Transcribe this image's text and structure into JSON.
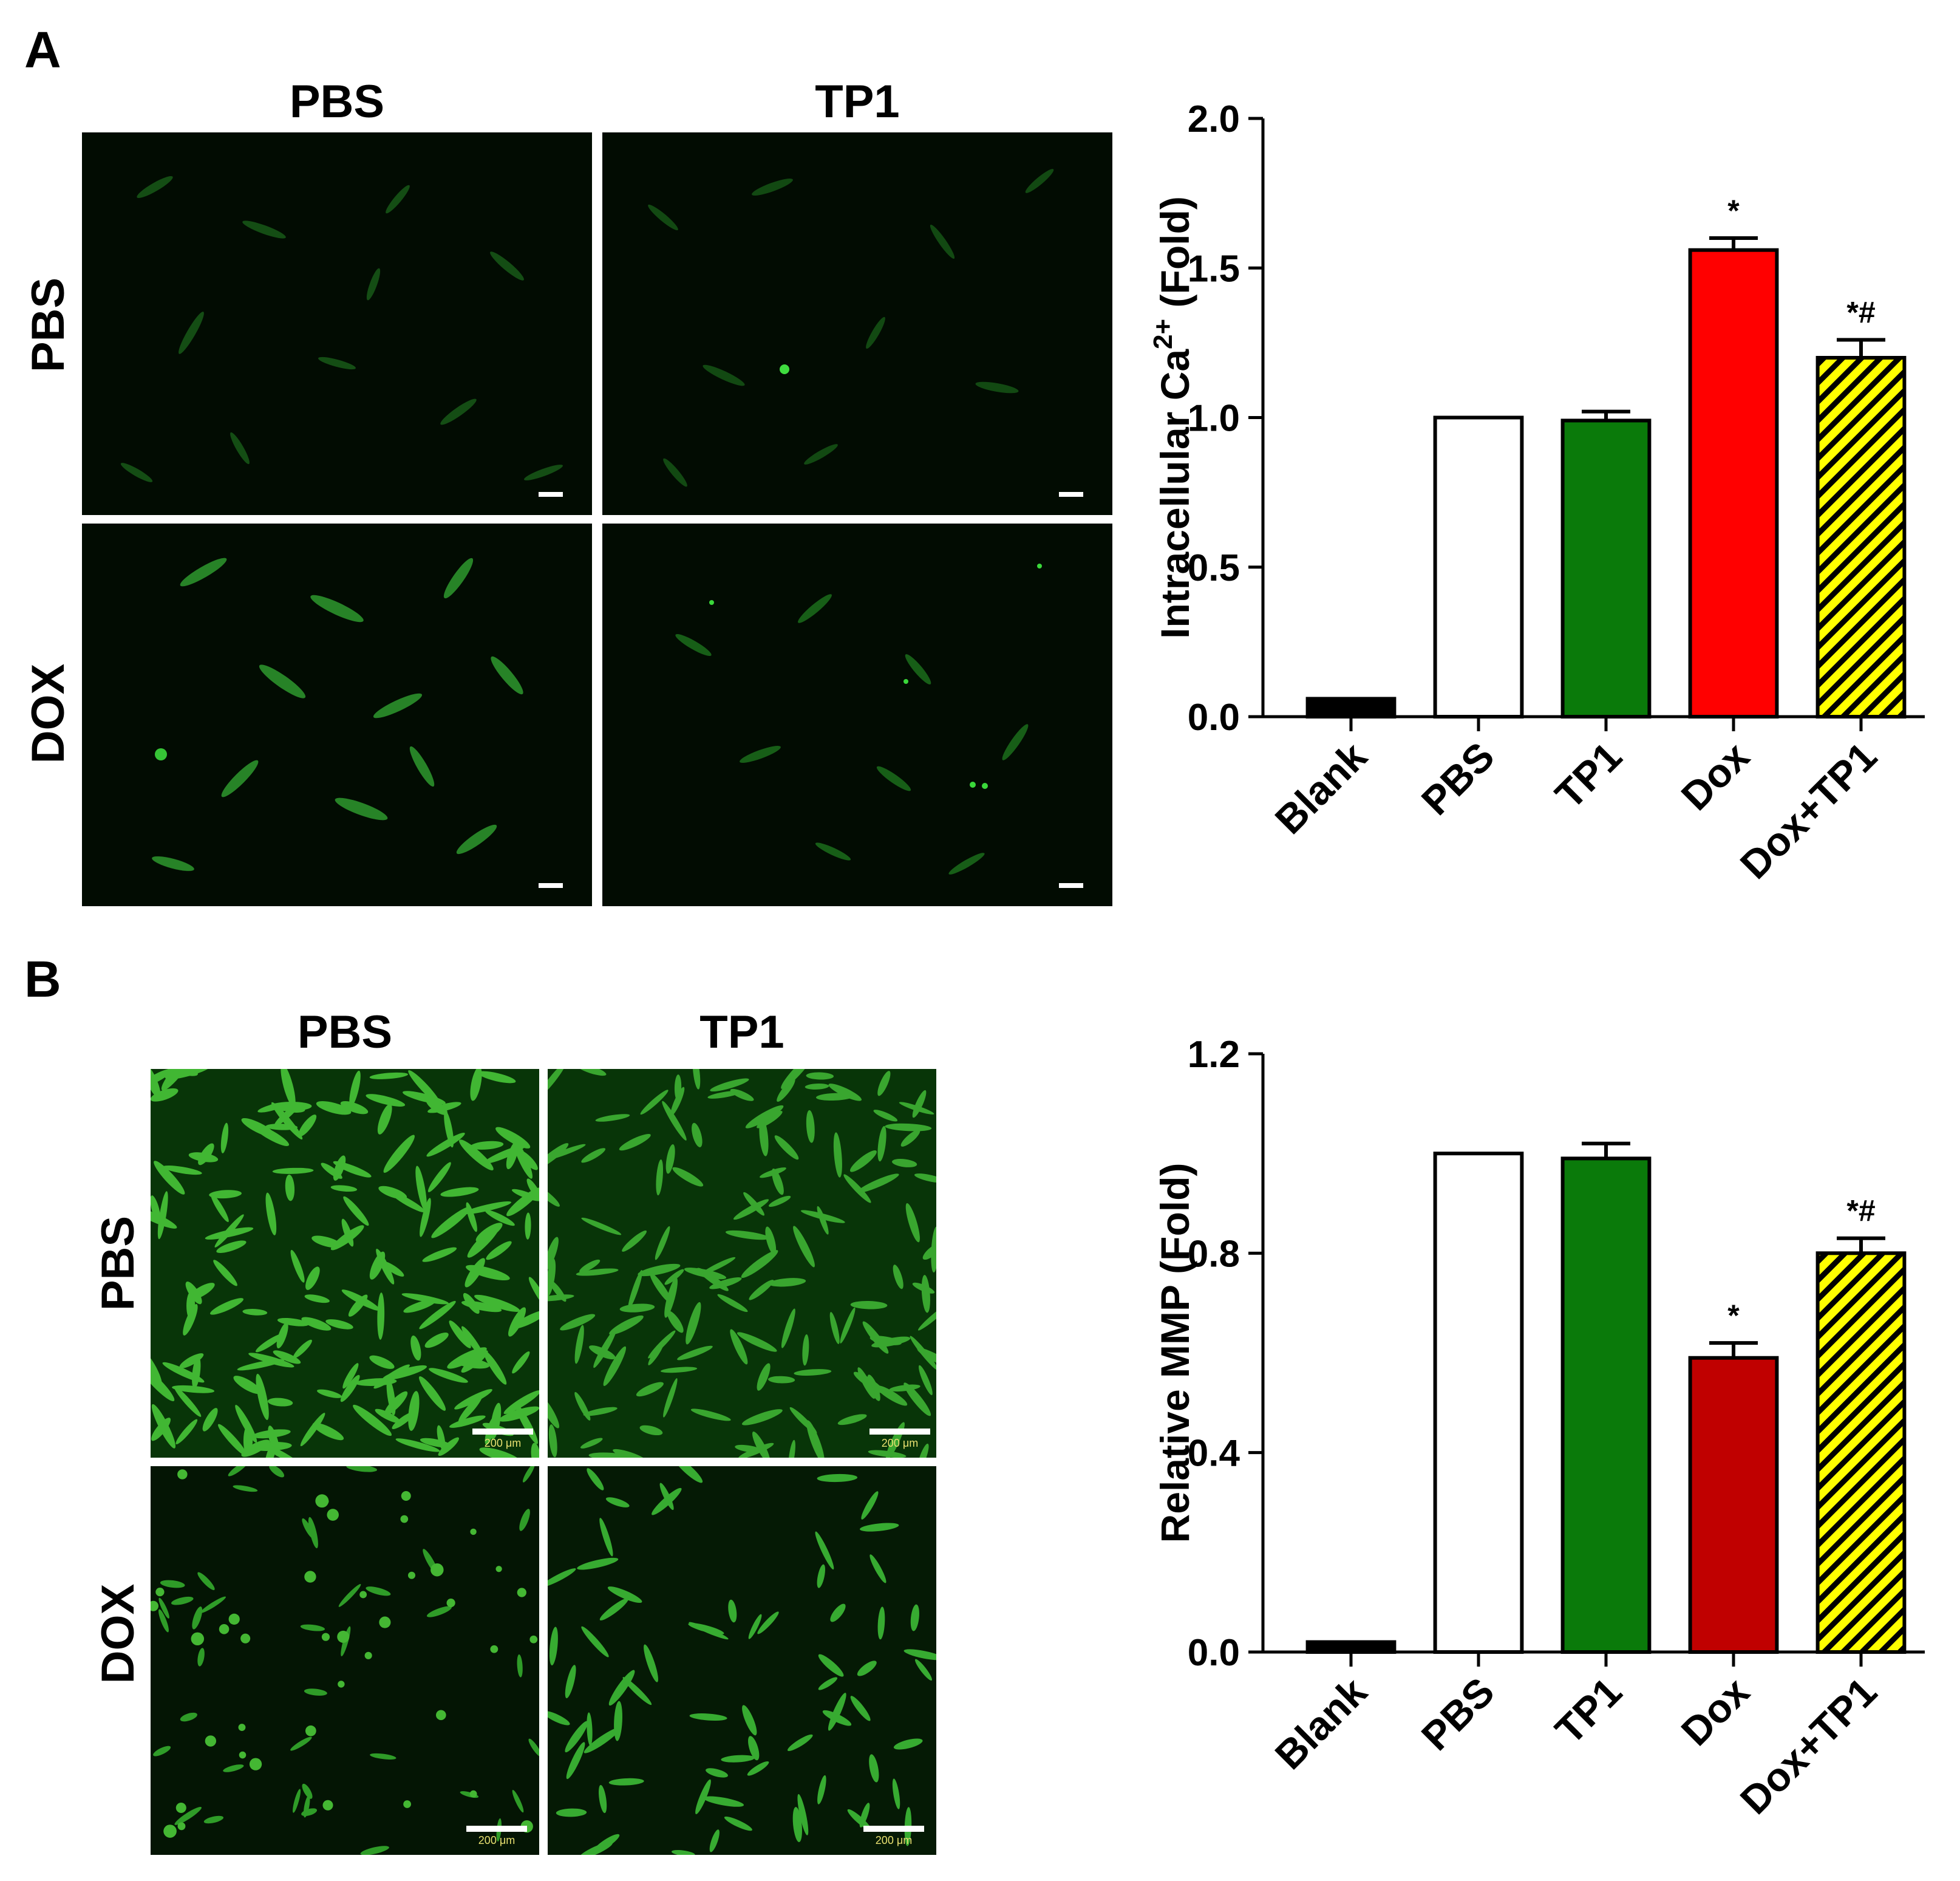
{
  "panels": [
    {
      "letter": "A",
      "columns": [
        "PBS",
        "TP1"
      ],
      "rows": [
        "PBS",
        "DOX"
      ],
      "scalebar_text": ""
    },
    {
      "letter": "B",
      "columns": [
        "PBS",
        "TP1"
      ],
      "rows": [
        "PBS",
        "DOX"
      ],
      "scalebar_text": "200 μm"
    }
  ],
  "chart_data": [
    {
      "type": "bar",
      "categories": [
        "Blank",
        "PBS",
        "TP1",
        "Dox",
        "Dox+TP1"
      ],
      "values": [
        0.06,
        1.0,
        0.99,
        1.56,
        1.2
      ],
      "errors": [
        0.0,
        0.0,
        0.03,
        0.04,
        0.06
      ],
      "annotations": [
        "",
        "",
        "",
        "*",
        "*#"
      ],
      "colors": [
        "#000000",
        "#ffffff",
        "#0a7a0a",
        "#ff0000",
        "#ffff00"
      ],
      "hatched": [
        false,
        false,
        false,
        false,
        true
      ],
      "ylabel": "Intracellular Ca",
      "ylabel_sup": "2+",
      "ylabel_suffix": " (Fold)",
      "ylim": [
        0,
        2.0
      ],
      "yticks": [
        "0.0",
        "0.5",
        "1.0",
        "1.5",
        "2.0"
      ],
      "ytick_values": [
        0,
        0.5,
        1.0,
        1.5,
        2.0
      ]
    },
    {
      "type": "bar",
      "categories": [
        "Blank",
        "PBS",
        "TP1",
        "Dox",
        "Dox+TP1"
      ],
      "values": [
        0.02,
        1.0,
        0.99,
        0.59,
        0.8
      ],
      "errors": [
        0.0,
        0.0,
        0.03,
        0.03,
        0.03
      ],
      "annotations": [
        "",
        "",
        "",
        "*",
        "*#"
      ],
      "colors": [
        "#000000",
        "#ffffff",
        "#0a7a0a",
        "#c00000",
        "#ffff00"
      ],
      "hatched": [
        false,
        false,
        false,
        false,
        true
      ],
      "ylabel": "Relative MMP",
      "ylabel_sup": "",
      "ylabel_suffix": " (Fold)",
      "ylim": [
        0,
        1.2
      ],
      "yticks": [
        "0.0",
        "0.4",
        "0.8",
        "1.2"
      ],
      "ytick_values": [
        0,
        0.4,
        0.8,
        1.2
      ]
    }
  ]
}
